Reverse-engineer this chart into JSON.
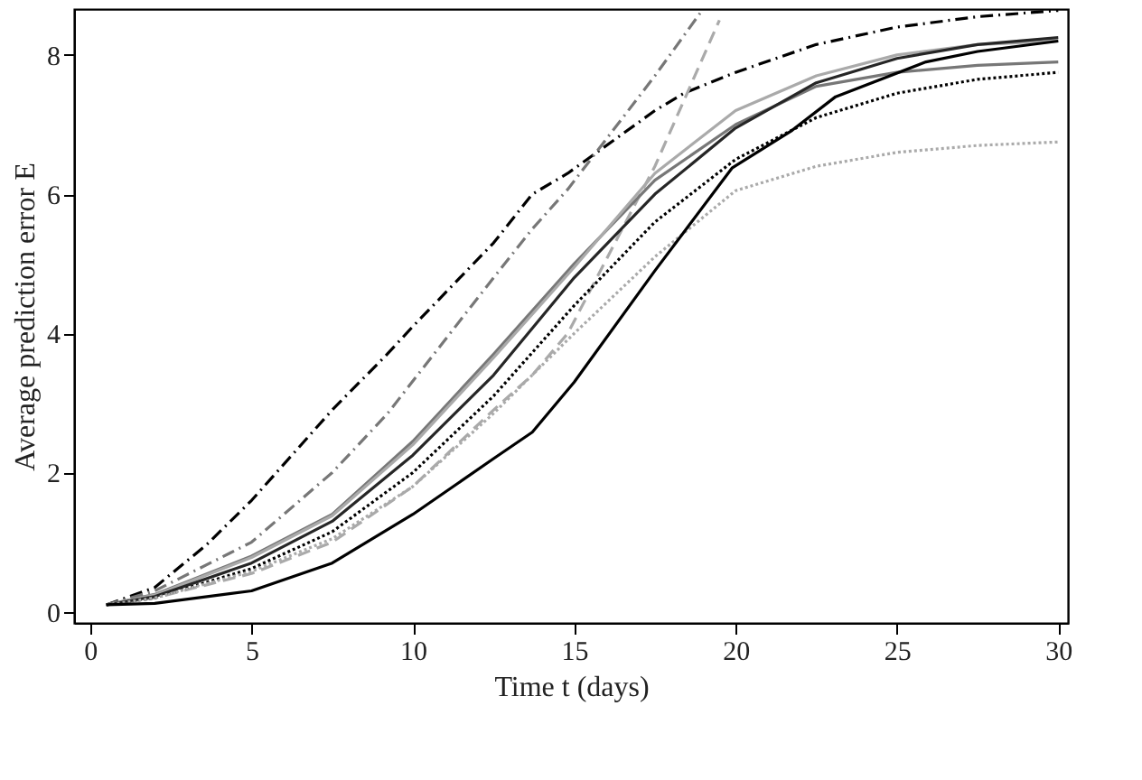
{
  "chart_data": {
    "type": "line",
    "xlabel": "Time t (days)",
    "ylabel": "Average prediction error E",
    "xlim": [
      -0.5,
      30.3
    ],
    "ylim": [
      -0.16,
      8.66
    ],
    "xticks": [
      0,
      5,
      10,
      15,
      20,
      25,
      30
    ],
    "yticks": [
      0,
      2,
      4,
      6,
      8
    ],
    "grid": false,
    "legend": false,
    "marker": "none",
    "series": [
      {
        "color": "#000000",
        "line_style": "dashdot",
        "x": [
          0.5,
          2,
          3.6,
          5,
          7.5,
          9.2,
          10,
          12.5,
          13.7,
          14.8,
          17.5,
          18.4,
          20,
          22.5,
          25,
          27.5,
          30
        ],
        "values": [
          0.1,
          0.35,
          0.96,
          1.6,
          2.9,
          3.7,
          4.1,
          5.3,
          6.0,
          6.3,
          7.2,
          7.45,
          7.75,
          8.15,
          8.4,
          8.55,
          8.64
        ]
      },
      {
        "color": "#777777",
        "line_style": "dashdot",
        "x": [
          0.5,
          2,
          5,
          7.5,
          9.2,
          12.5,
          13.7,
          14.8,
          17.5,
          18.9
        ],
        "values": [
          0.1,
          0.3,
          1.0,
          2.0,
          2.84,
          4.8,
          5.5,
          6.07,
          7.7,
          8.6
        ]
      },
      {
        "color": "#aaaaaa",
        "line_style": "dashed",
        "x": [
          0.5,
          2,
          5,
          7.5,
          10,
          12.5,
          13.7,
          14.8,
          17.5,
          19.5
        ],
        "values": [
          0.1,
          0.2,
          0.55,
          1.0,
          1.8,
          2.9,
          3.4,
          4.0,
          6.4,
          8.5
        ]
      },
      {
        "color": "#777777",
        "line_style": "solid",
        "x": [
          0.5,
          2,
          5,
          7.5,
          10,
          12.5,
          15,
          17.5,
          20,
          22.5,
          25,
          27.5,
          30
        ],
        "values": [
          0.1,
          0.25,
          0.8,
          1.4,
          2.45,
          3.7,
          5.0,
          6.2,
          7.0,
          7.55,
          7.75,
          7.85,
          7.9
        ]
      },
      {
        "color": "#aaaaaa",
        "line_style": "solid",
        "x": [
          0.5,
          2,
          5,
          7.5,
          10,
          12.5,
          15,
          17.5,
          20,
          22.5,
          25,
          27.5,
          30
        ],
        "values": [
          0.1,
          0.24,
          0.78,
          1.38,
          2.4,
          3.65,
          4.95,
          6.3,
          7.2,
          7.7,
          8.0,
          8.15,
          8.2
        ]
      },
      {
        "color": "#262626",
        "line_style": "solid",
        "x": [
          0.5,
          2,
          5,
          7.5,
          10,
          12.5,
          15,
          17.5,
          20,
          22.5,
          25,
          27.5,
          30
        ],
        "values": [
          0.1,
          0.22,
          0.7,
          1.3,
          2.25,
          3.4,
          4.8,
          6.0,
          6.95,
          7.6,
          7.95,
          8.15,
          8.25
        ]
      },
      {
        "color": "#000000",
        "line_style": "dotted",
        "x": [
          0.5,
          2,
          5,
          7.5,
          10,
          12.5,
          15,
          17.5,
          20,
          22.5,
          25,
          27.5,
          30
        ],
        "values": [
          0.1,
          0.2,
          0.62,
          1.15,
          2.0,
          3.1,
          4.4,
          5.6,
          6.5,
          7.1,
          7.45,
          7.65,
          7.75
        ]
      },
      {
        "color": "#aaaaaa",
        "line_style": "dotted",
        "x": [
          0.5,
          2,
          5,
          7.5,
          10,
          12.5,
          15,
          17.5,
          20,
          22.5,
          25,
          27.5,
          30
        ],
        "values": [
          0.1,
          0.2,
          0.58,
          1.05,
          1.8,
          2.85,
          4.0,
          5.1,
          6.05,
          6.4,
          6.6,
          6.7,
          6.75
        ]
      },
      {
        "color": "#000000",
        "line_style": "solid",
        "x": [
          0.5,
          2,
          5,
          7.5,
          10,
          12.5,
          13.7,
          15,
          17.5,
          19.9,
          21.7,
          23.1,
          25.9,
          27.5,
          30
        ],
        "values": [
          0.1,
          0.12,
          0.3,
          0.7,
          1.4,
          2.2,
          2.58,
          3.3,
          4.9,
          6.38,
          6.9,
          7.4,
          7.9,
          8.05,
          8.2
        ]
      }
    ]
  }
}
